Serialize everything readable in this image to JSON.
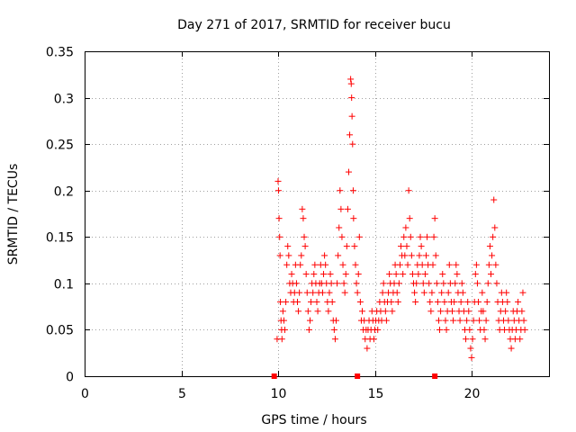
{
  "chart_data": {
    "type": "scatter",
    "title": "Day 271 of 2017, SRMTID for receiver bucu",
    "xlabel": "GPS time / hours",
    "ylabel": "SRMTID / TECUs",
    "xlim": [
      0,
      24
    ],
    "ylim": [
      0,
      0.35
    ],
    "xticks": [
      0,
      5,
      10,
      15,
      20
    ],
    "yticks": [
      0,
      0.05,
      0.1,
      0.15,
      0.2,
      0.25,
      0.3,
      0.35
    ],
    "grid": true,
    "marker": "+",
    "color": "#ff0000",
    "zero_markers_x": [
      9.8,
      14.1,
      18.1
    ],
    "series": [
      {
        "name": "SRMTID",
        "points": [
          [
            9.95,
            0.04
          ],
          [
            10.0,
            0.21
          ],
          [
            10.02,
            0.2
          ],
          [
            10.05,
            0.17
          ],
          [
            10.08,
            0.15
          ],
          [
            10.1,
            0.13
          ],
          [
            10.12,
            0.08
          ],
          [
            10.15,
            0.06
          ],
          [
            10.18,
            0.05
          ],
          [
            10.2,
            0.04
          ],
          [
            10.25,
            0.07
          ],
          [
            10.3,
            0.06
          ],
          [
            10.35,
            0.05
          ],
          [
            10.4,
            0.08
          ],
          [
            10.45,
            0.12
          ],
          [
            10.5,
            0.14
          ],
          [
            10.55,
            0.13
          ],
          [
            10.6,
            0.1
          ],
          [
            10.65,
            0.09
          ],
          [
            10.7,
            0.11
          ],
          [
            10.75,
            0.1
          ],
          [
            10.8,
            0.08
          ],
          [
            10.85,
            0.09
          ],
          [
            10.9,
            0.12
          ],
          [
            10.95,
            0.1
          ],
          [
            11.0,
            0.08
          ],
          [
            11.05,
            0.07
          ],
          [
            11.1,
            0.09
          ],
          [
            11.15,
            0.12
          ],
          [
            11.2,
            0.13
          ],
          [
            11.25,
            0.18
          ],
          [
            11.3,
            0.17
          ],
          [
            11.35,
            0.15
          ],
          [
            11.4,
            0.14
          ],
          [
            11.45,
            0.11
          ],
          [
            11.5,
            0.09
          ],
          [
            11.55,
            0.07
          ],
          [
            11.6,
            0.05
          ],
          [
            11.65,
            0.06
          ],
          [
            11.7,
            0.08
          ],
          [
            11.75,
            0.1
          ],
          [
            11.8,
            0.09
          ],
          [
            11.85,
            0.11
          ],
          [
            11.9,
            0.12
          ],
          [
            11.95,
            0.1
          ],
          [
            12.0,
            0.08
          ],
          [
            12.05,
            0.07
          ],
          [
            12.1,
            0.09
          ],
          [
            12.15,
            0.1
          ],
          [
            12.2,
            0.12
          ],
          [
            12.25,
            0.1
          ],
          [
            12.3,
            0.09
          ],
          [
            12.35,
            0.11
          ],
          [
            12.4,
            0.13
          ],
          [
            12.45,
            0.12
          ],
          [
            12.5,
            0.1
          ],
          [
            12.55,
            0.08
          ],
          [
            12.6,
            0.07
          ],
          [
            12.65,
            0.09
          ],
          [
            12.7,
            0.11
          ],
          [
            12.75,
            0.1
          ],
          [
            12.8,
            0.08
          ],
          [
            12.85,
            0.06
          ],
          [
            12.9,
            0.05
          ],
          [
            12.95,
            0.04
          ],
          [
            13.0,
            0.06
          ],
          [
            13.05,
            0.1
          ],
          [
            13.1,
            0.13
          ],
          [
            13.15,
            0.16
          ],
          [
            13.2,
            0.2
          ],
          [
            13.25,
            0.18
          ],
          [
            13.3,
            0.15
          ],
          [
            13.35,
            0.12
          ],
          [
            13.4,
            0.1
          ],
          [
            13.45,
            0.09
          ],
          [
            13.5,
            0.11
          ],
          [
            13.55,
            0.14
          ],
          [
            13.6,
            0.18
          ],
          [
            13.65,
            0.22
          ],
          [
            13.7,
            0.26
          ],
          [
            13.75,
            0.32
          ],
          [
            13.78,
            0.315
          ],
          [
            13.8,
            0.3
          ],
          [
            13.82,
            0.28
          ],
          [
            13.85,
            0.25
          ],
          [
            13.88,
            0.2
          ],
          [
            13.9,
            0.17
          ],
          [
            13.95,
            0.14
          ],
          [
            14.0,
            0.12
          ],
          [
            14.05,
            0.1
          ],
          [
            14.1,
            0.09
          ],
          [
            14.15,
            0.11
          ],
          [
            14.2,
            0.15
          ],
          [
            14.25,
            0.08
          ],
          [
            14.3,
            0.06
          ],
          [
            14.35,
            0.07
          ],
          [
            14.4,
            0.05
          ],
          [
            14.45,
            0.06
          ],
          [
            14.5,
            0.04
          ],
          [
            14.55,
            0.05
          ],
          [
            14.6,
            0.03
          ],
          [
            14.65,
            0.05
          ],
          [
            14.7,
            0.06
          ],
          [
            14.75,
            0.04
          ],
          [
            14.8,
            0.05
          ],
          [
            14.85,
            0.07
          ],
          [
            14.9,
            0.06
          ],
          [
            14.95,
            0.04
          ],
          [
            15.0,
            0.05
          ],
          [
            15.05,
            0.06
          ],
          [
            15.1,
            0.07
          ],
          [
            15.15,
            0.05
          ],
          [
            15.2,
            0.06
          ],
          [
            15.25,
            0.08
          ],
          [
            15.3,
            0.07
          ],
          [
            15.35,
            0.06
          ],
          [
            15.4,
            0.09
          ],
          [
            15.45,
            0.1
          ],
          [
            15.5,
            0.08
          ],
          [
            15.55,
            0.07
          ],
          [
            15.6,
            0.06
          ],
          [
            15.65,
            0.08
          ],
          [
            15.7,
            0.09
          ],
          [
            15.75,
            0.11
          ],
          [
            15.8,
            0.1
          ],
          [
            15.85,
            0.08
          ],
          [
            15.9,
            0.07
          ],
          [
            15.95,
            0.09
          ],
          [
            16.0,
            0.1
          ],
          [
            16.05,
            0.12
          ],
          [
            16.1,
            0.11
          ],
          [
            16.15,
            0.09
          ],
          [
            16.2,
            0.08
          ],
          [
            16.25,
            0.1
          ],
          [
            16.3,
            0.12
          ],
          [
            16.35,
            0.14
          ],
          [
            16.4,
            0.13
          ],
          [
            16.45,
            0.11
          ],
          [
            16.5,
            0.15
          ],
          [
            16.55,
            0.13
          ],
          [
            16.6,
            0.16
          ],
          [
            16.65,
            0.14
          ],
          [
            16.7,
            0.12
          ],
          [
            16.75,
            0.2
          ],
          [
            16.8,
            0.17
          ],
          [
            16.85,
            0.15
          ],
          [
            16.9,
            0.13
          ],
          [
            16.95,
            0.11
          ],
          [
            17.0,
            0.1
          ],
          [
            17.05,
            0.09
          ],
          [
            17.1,
            0.08
          ],
          [
            17.15,
            0.1
          ],
          [
            17.2,
            0.12
          ],
          [
            17.25,
            0.11
          ],
          [
            17.3,
            0.13
          ],
          [
            17.35,
            0.15
          ],
          [
            17.4,
            0.14
          ],
          [
            17.45,
            0.12
          ],
          [
            17.5,
            0.1
          ],
          [
            17.55,
            0.09
          ],
          [
            17.6,
            0.11
          ],
          [
            17.65,
            0.13
          ],
          [
            17.7,
            0.15
          ],
          [
            17.75,
            0.12
          ],
          [
            17.8,
            0.1
          ],
          [
            17.85,
            0.08
          ],
          [
            17.9,
            0.07
          ],
          [
            17.95,
            0.09
          ],
          [
            18.0,
            0.12
          ],
          [
            18.05,
            0.15
          ],
          [
            18.1,
            0.17
          ],
          [
            18.15,
            0.13
          ],
          [
            18.2,
            0.1
          ],
          [
            18.25,
            0.08
          ],
          [
            18.3,
            0.06
          ],
          [
            18.35,
            0.05
          ],
          [
            18.4,
            0.07
          ],
          [
            18.45,
            0.09
          ],
          [
            18.5,
            0.11
          ],
          [
            18.55,
            0.1
          ],
          [
            18.6,
            0.08
          ],
          [
            18.65,
            0.06
          ],
          [
            18.7,
            0.05
          ],
          [
            18.75,
            0.07
          ],
          [
            18.8,
            0.09
          ],
          [
            18.85,
            0.12
          ],
          [
            18.9,
            0.1
          ],
          [
            18.95,
            0.08
          ],
          [
            19.0,
            0.07
          ],
          [
            19.05,
            0.06
          ],
          [
            19.1,
            0.08
          ],
          [
            19.15,
            0.1
          ],
          [
            19.2,
            0.12
          ],
          [
            19.25,
            0.11
          ],
          [
            19.3,
            0.09
          ],
          [
            19.35,
            0.07
          ],
          [
            19.4,
            0.06
          ],
          [
            19.45,
            0.08
          ],
          [
            19.5,
            0.1
          ],
          [
            19.55,
            0.09
          ],
          [
            19.6,
            0.07
          ],
          [
            19.65,
            0.05
          ],
          [
            19.7,
            0.04
          ],
          [
            19.75,
            0.06
          ],
          [
            19.8,
            0.08
          ],
          [
            19.85,
            0.07
          ],
          [
            19.9,
            0.05
          ],
          [
            19.95,
            0.03
          ],
          [
            20.0,
            0.02
          ],
          [
            20.05,
            0.04
          ],
          [
            20.1,
            0.06
          ],
          [
            20.15,
            0.08
          ],
          [
            20.2,
            0.11
          ],
          [
            20.25,
            0.12
          ],
          [
            20.3,
            0.1
          ],
          [
            20.35,
            0.08
          ],
          [
            20.4,
            0.06
          ],
          [
            20.45,
            0.05
          ],
          [
            20.5,
            0.07
          ],
          [
            20.55,
            0.09
          ],
          [
            20.6,
            0.07
          ],
          [
            20.65,
            0.05
          ],
          [
            20.7,
            0.04
          ],
          [
            20.75,
            0.06
          ],
          [
            20.8,
            0.08
          ],
          [
            20.85,
            0.1
          ],
          [
            20.9,
            0.12
          ],
          [
            20.95,
            0.14
          ],
          [
            21.0,
            0.11
          ],
          [
            21.05,
            0.13
          ],
          [
            21.1,
            0.15
          ],
          [
            21.15,
            0.19
          ],
          [
            21.2,
            0.16
          ],
          [
            21.25,
            0.12
          ],
          [
            21.3,
            0.1
          ],
          [
            21.35,
            0.08
          ],
          [
            21.4,
            0.06
          ],
          [
            21.45,
            0.05
          ],
          [
            21.5,
            0.07
          ],
          [
            21.55,
            0.09
          ],
          [
            21.6,
            0.08
          ],
          [
            21.65,
            0.06
          ],
          [
            21.7,
            0.05
          ],
          [
            21.75,
            0.07
          ],
          [
            21.8,
            0.09
          ],
          [
            21.85,
            0.08
          ],
          [
            21.9,
            0.06
          ],
          [
            21.95,
            0.05
          ],
          [
            22.0,
            0.04
          ],
          [
            22.05,
            0.03
          ],
          [
            22.1,
            0.05
          ],
          [
            22.15,
            0.07
          ],
          [
            22.2,
            0.06
          ],
          [
            22.25,
            0.04
          ],
          [
            22.3,
            0.05
          ],
          [
            22.35,
            0.07
          ],
          [
            22.4,
            0.08
          ],
          [
            22.45,
            0.06
          ],
          [
            22.5,
            0.04
          ],
          [
            22.55,
            0.05
          ],
          [
            22.6,
            0.07
          ],
          [
            22.65,
            0.09
          ],
          [
            22.7,
            0.06
          ],
          [
            22.75,
            0.05
          ]
        ]
      }
    ]
  }
}
